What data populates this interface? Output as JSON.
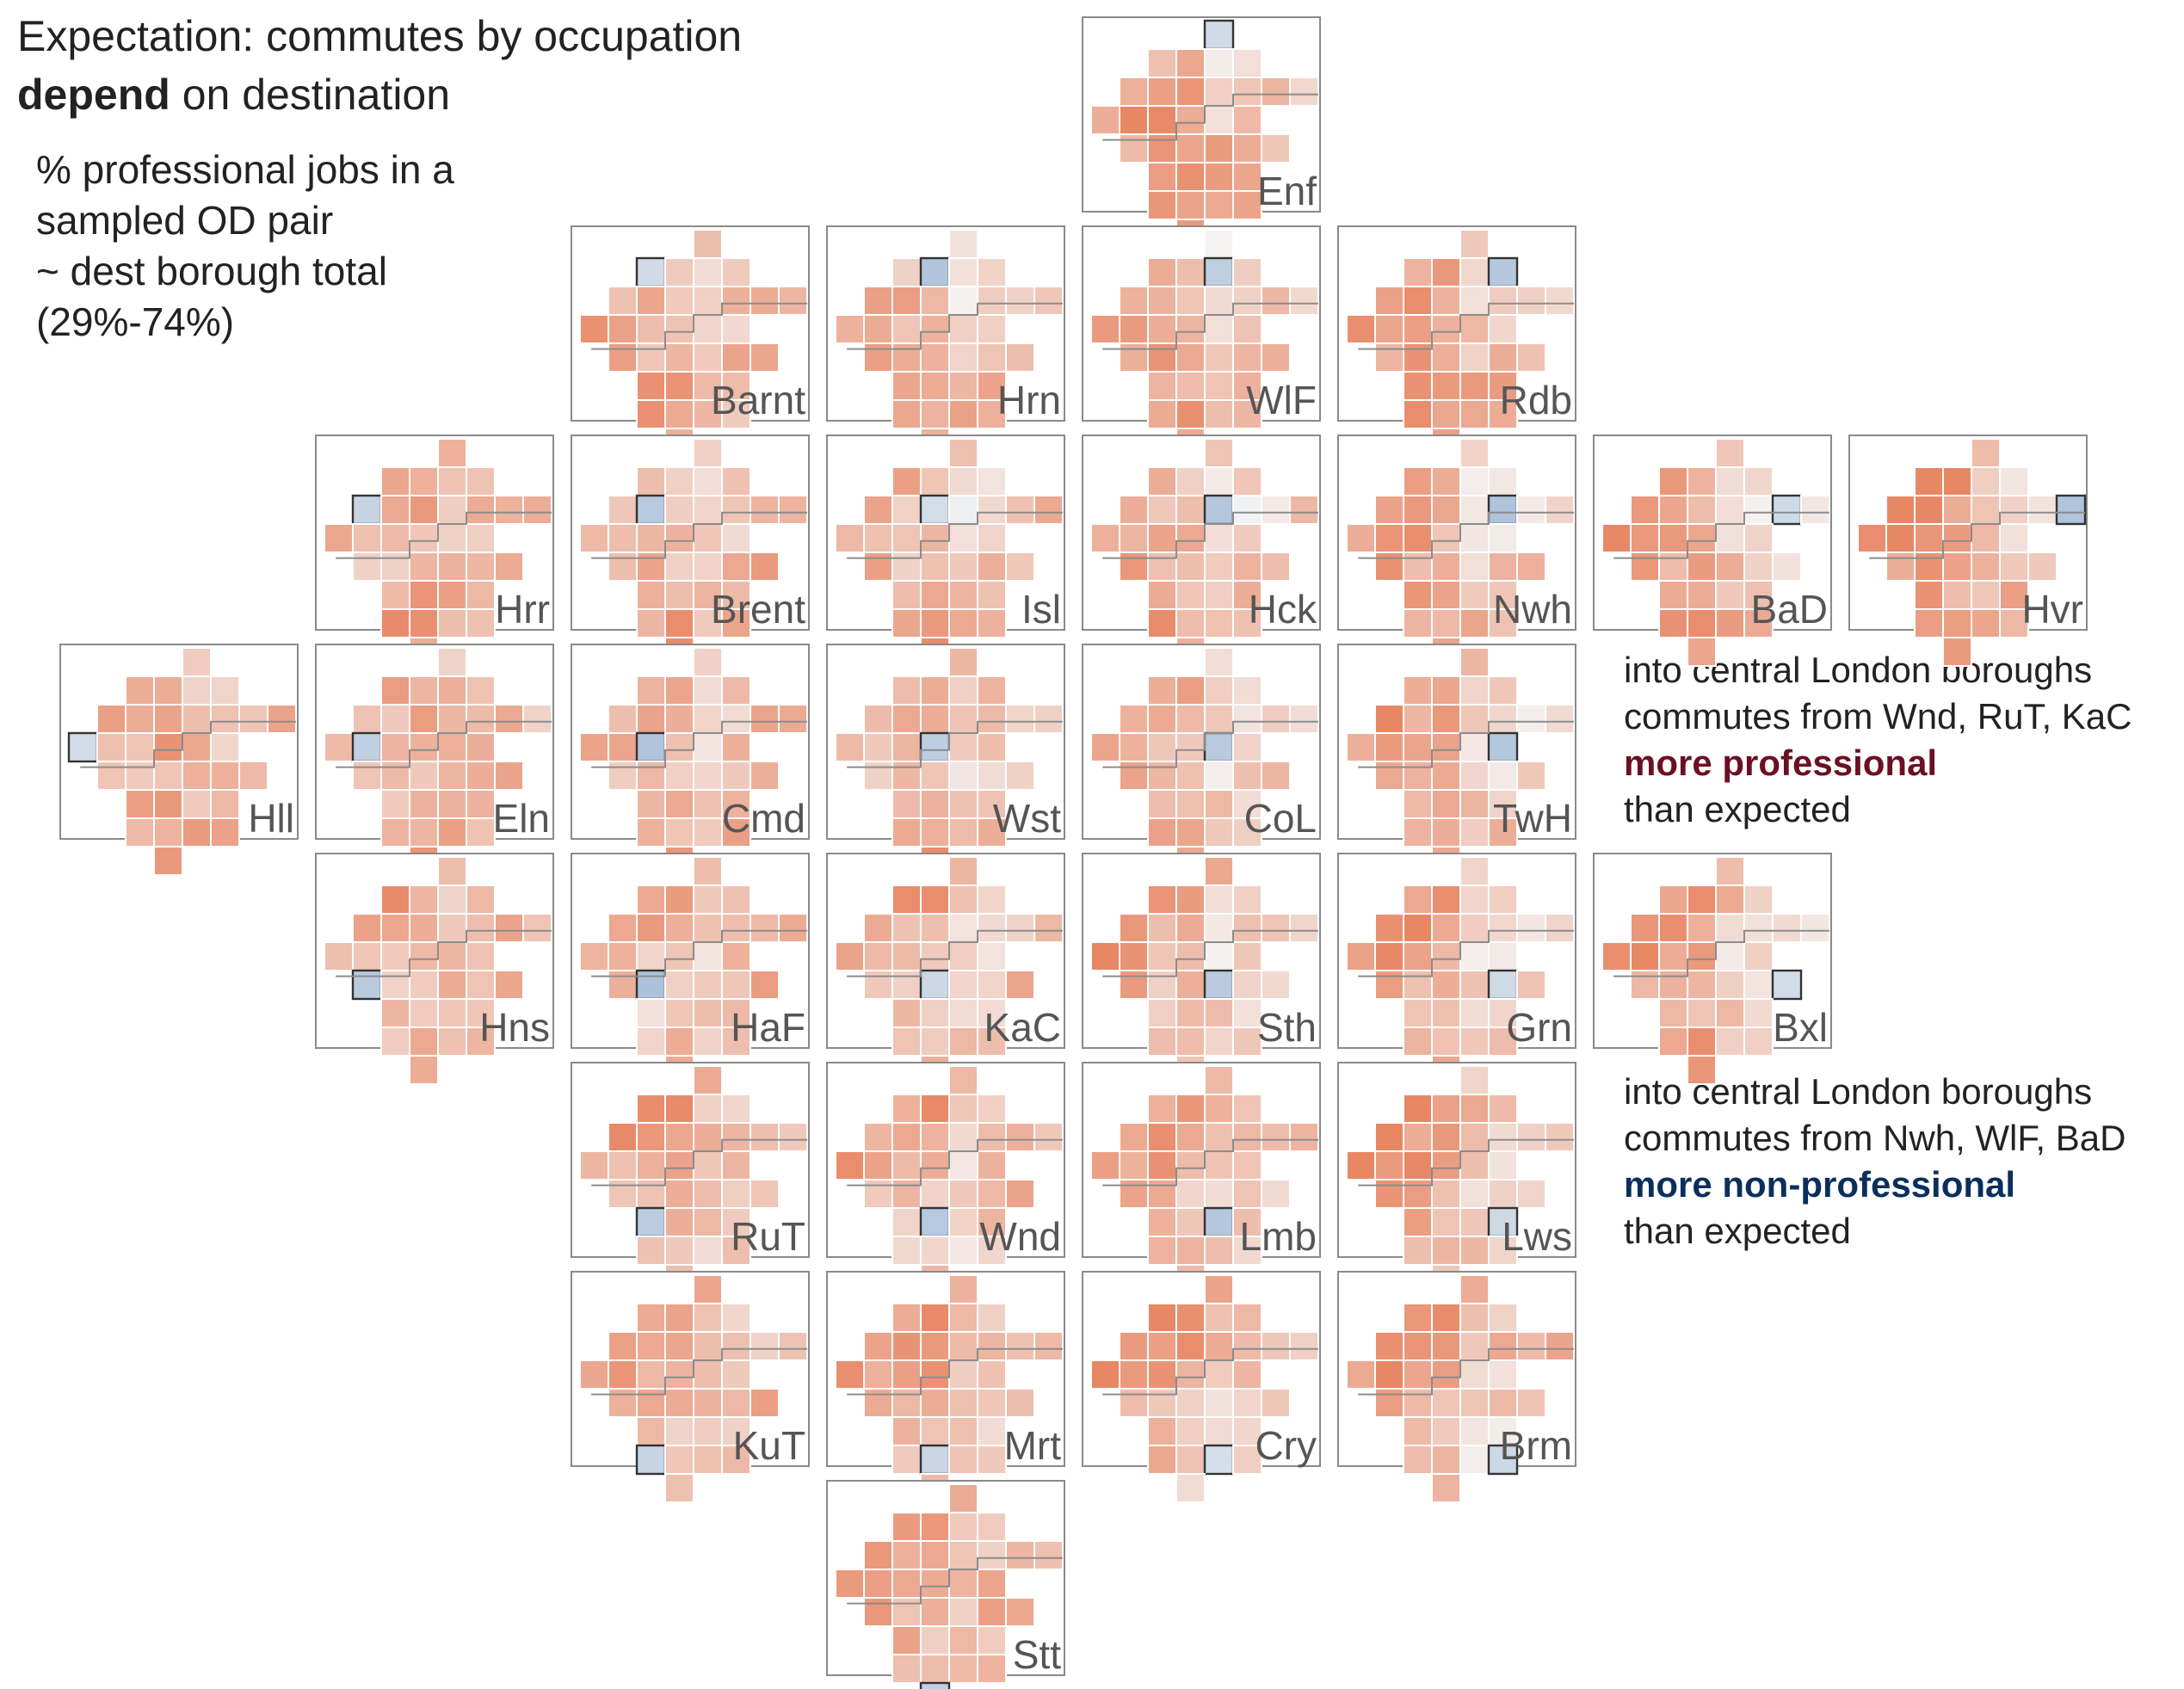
{
  "title": {
    "line1": "Expectation: commutes by occupation",
    "line2_bold": "depend",
    "line2_rest": " on destination"
  },
  "subtitle": {
    "lines": [
      "% professional jobs in a",
      "sampled OD pair",
      "~ dest borough total",
      "(29%-74%)"
    ]
  },
  "annotations": {
    "professional": {
      "line1": "into central London boroughs",
      "line2": "commutes from Wnd, RuT, KaC",
      "line3": "more professional",
      "line4": "than expected"
    },
    "non_professional": {
      "line1": "into central London boroughs",
      "line2": "commutes from Nwh, WlF, BaD",
      "line3": "more non-professional",
      "line4": "than expected"
    }
  },
  "colors": {
    "professional_text": "#6b1023",
    "non_professional_text": "#0b2f5c",
    "more_professional_cell": "#4575b4",
    "more_non_professional_cell": "#e6693f",
    "neutral_cell": "#f4f4f4"
  },
  "panels": [
    {
      "code": "Enf",
      "row": 0,
      "col": 4
    },
    {
      "code": "Barnt",
      "row": 1,
      "col": 2
    },
    {
      "code": "Hrn",
      "row": 1,
      "col": 3
    },
    {
      "code": "WlF",
      "row": 1,
      "col": 4
    },
    {
      "code": "Rdb",
      "row": 1,
      "col": 5
    },
    {
      "code": "Hrr",
      "row": 2,
      "col": 1
    },
    {
      "code": "Brent",
      "row": 2,
      "col": 2
    },
    {
      "code": "Isl",
      "row": 2,
      "col": 3
    },
    {
      "code": "Hck",
      "row": 2,
      "col": 4
    },
    {
      "code": "Nwh",
      "row": 2,
      "col": 5
    },
    {
      "code": "BaD",
      "row": 2,
      "col": 6
    },
    {
      "code": "Hvr",
      "row": 2,
      "col": 7
    },
    {
      "code": "Hll",
      "row": 3,
      "col": 0
    },
    {
      "code": "Eln",
      "row": 3,
      "col": 1
    },
    {
      "code": "Cmd",
      "row": 3,
      "col": 2
    },
    {
      "code": "Wst",
      "row": 3,
      "col": 3
    },
    {
      "code": "CoL",
      "row": 3,
      "col": 4
    },
    {
      "code": "TwH",
      "row": 3,
      "col": 5
    },
    {
      "code": "Hns",
      "row": 4,
      "col": 1
    },
    {
      "code": "HaF",
      "row": 4,
      "col": 2
    },
    {
      "code": "KaC",
      "row": 4,
      "col": 3
    },
    {
      "code": "Sth",
      "row": 4,
      "col": 4
    },
    {
      "code": "Grn",
      "row": 4,
      "col": 5
    },
    {
      "code": "Bxl",
      "row": 4,
      "col": 6
    },
    {
      "code": "RuT",
      "row": 5,
      "col": 2
    },
    {
      "code": "Wnd",
      "row": 5,
      "col": 3
    },
    {
      "code": "Lmb",
      "row": 5,
      "col": 4
    },
    {
      "code": "Lws",
      "row": 5,
      "col": 5
    },
    {
      "code": "KuT",
      "row": 6,
      "col": 2
    },
    {
      "code": "Mrt",
      "row": 6,
      "col": 3
    },
    {
      "code": "Cry",
      "row": 6,
      "col": 4
    },
    {
      "code": "Brm",
      "row": 6,
      "col": 5
    },
    {
      "code": "Stt",
      "row": 7,
      "col": 3
    }
  ]
}
